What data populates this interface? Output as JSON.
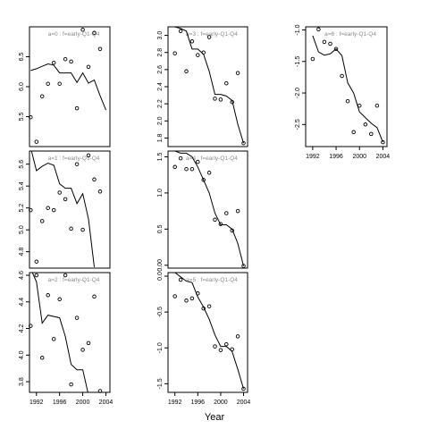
{
  "chart_data": {
    "type": "scatter",
    "xlabel": "Year",
    "x_ticks": [
      1992,
      1996,
      2000,
      2004
    ],
    "xlim": [
      1990.8,
      2004.7
    ],
    "panels": [
      {
        "label": "a=0 : f=early-Q1-Q4",
        "ylim": [
          5.0,
          7.0
        ],
        "yticks": [
          5.5,
          6.0,
          6.5
        ],
        "ytick_labels": [
          "5.5",
          "6.0",
          "6.5"
        ],
        "points": {
          "x": [
            1991,
            1992,
            1993,
            1994,
            1995,
            1996,
            1997,
            1998,
            1999,
            2000,
            2001,
            2002,
            2003,
            2004
          ],
          "y": [
            5.49,
            5.08,
            5.84,
            6.05,
            6.4,
            6.05,
            6.46,
            6.42,
            5.64,
            6.95,
            6.33,
            6.9,
            6.63,
            null
          ]
        },
        "fit": {
          "x": [
            1991,
            1992,
            1993,
            1994,
            1995,
            1996,
            1997,
            1998,
            1999,
            2000,
            2001,
            2002,
            2003,
            2004
          ],
          "y": [
            6.27,
            6.3,
            6.34,
            6.38,
            6.36,
            6.23,
            6.23,
            6.23,
            6.07,
            6.23,
            6.06,
            6.11,
            5.85,
            5.61
          ]
        }
      },
      {
        "label": "a=3 : f=early-Q1-Q4",
        "ylim": [
          1.7,
          3.1
        ],
        "yticks": [
          1.8,
          2.0,
          2.2,
          2.4,
          2.6,
          2.8,
          3.0
        ],
        "ytick_labels": [
          "1.8",
          "2.0",
          "2.2",
          "2.4",
          "2.6",
          "2.8",
          "3.0"
        ],
        "points": {
          "x": [
            1992,
            1993,
            1994,
            1995,
            1996,
            1997,
            1998,
            1999,
            2000,
            2001,
            2002,
            2003,
            2004
          ],
          "y": [
            2.79,
            3.05,
            2.58,
            2.93,
            2.77,
            2.8,
            2.98,
            2.26,
            2.25,
            2.44,
            2.22,
            2.56,
            1.74
          ]
        },
        "fit": {
          "x": [
            1992,
            1993,
            1994,
            1995,
            1996,
            1997,
            1998,
            1999,
            2000,
            2001,
            2002,
            2003,
            2004
          ],
          "y": [
            3.1,
            3.08,
            3.05,
            2.84,
            2.84,
            2.78,
            2.58,
            2.31,
            2.31,
            2.29,
            2.24,
            1.96,
            1.74
          ]
        }
      },
      {
        "label": "a=6 : f=early-Q1-Q4",
        "ylim": [
          -2.85,
          -0.95
        ],
        "yticks": [
          -2.5,
          -2.0,
          -1.5,
          -1.0
        ],
        "ytick_labels": [
          "-2.5",
          "-2.0",
          "-1.5",
          "-1.0"
        ],
        "points": {
          "x": [
            1992,
            1993,
            1994,
            1995,
            1996,
            1997,
            1998,
            1999,
            2000,
            2001,
            2002,
            2003,
            2004
          ],
          "y": [
            -1.46,
            -0.99,
            -1.19,
            -1.22,
            -1.3,
            -1.73,
            -2.13,
            -2.62,
            -2.2,
            -2.5,
            -2.65,
            -2.2,
            -2.78
          ]
        },
        "fit": {
          "x": [
            1992,
            1993,
            1994,
            1995,
            1996,
            1997,
            1998,
            1999,
            2000,
            2001,
            2002,
            2003,
            2004
          ],
          "y": [
            -1.09,
            -1.35,
            -1.4,
            -1.38,
            -1.3,
            -1.41,
            -1.84,
            -2.0,
            -2.3,
            -2.39,
            -2.48,
            -2.55,
            -2.78
          ]
        }
      },
      {
        "label": "a=1 : f=early-Q1-Q4",
        "ylim": [
          4.65,
          5.72
        ],
        "yticks": [
          4.8,
          5.0,
          5.2,
          5.4,
          5.6
        ],
        "ytick_labels": [
          "4.8",
          "5.0",
          "5.2",
          "5.4",
          "5.6"
        ],
        "points": {
          "x": [
            1991,
            1992,
            1993,
            1994,
            1995,
            1996,
            1997,
            1998,
            1999,
            2000,
            2001,
            2002,
            2003,
            2004
          ],
          "y": [
            5.18,
            4.71,
            5.08,
            5.2,
            5.18,
            5.34,
            5.28,
            5.01,
            5.6,
            5.0,
            5.68,
            5.46,
            5.35,
            null
          ]
        },
        "fit": {
          "x": [
            1991,
            1992,
            1993,
            1994,
            1995,
            1996,
            1997,
            1998,
            1999,
            2000,
            2001,
            2002,
            2003,
            2004
          ],
          "y": [
            5.75,
            5.54,
            5.58,
            5.61,
            5.59,
            5.42,
            5.38,
            5.38,
            5.24,
            5.33,
            5.1,
            4.66,
            null,
            null
          ]
        }
      },
      {
        "label": "a=4 : f=early-Q1-Q4",
        "ylim": [
          -0.04,
          1.58
        ],
        "yticks": [
          0.0,
          0.5,
          1.0,
          1.5
        ],
        "ytick_labels": [
          "0.00",
          "0.5",
          "1.0",
          "1.5"
        ],
        "points": {
          "x": [
            1992,
            1993,
            1994,
            1995,
            1996,
            1997,
            1998,
            1999,
            2000,
            2001,
            2002,
            2003,
            2004
          ],
          "y": [
            1.36,
            1.48,
            1.33,
            1.33,
            1.43,
            1.18,
            1.28,
            0.63,
            0.57,
            0.72,
            0.48,
            0.75,
            -0.01
          ]
        },
        "fit": {
          "x": [
            1992,
            1993,
            1994,
            1995,
            1996,
            1997,
            1998,
            1999,
            2000,
            2001,
            2002,
            2003,
            2004
          ],
          "y": [
            1.58,
            1.55,
            1.55,
            1.5,
            1.36,
            1.18,
            1.0,
            0.72,
            0.56,
            0.56,
            0.5,
            0.3,
            -0.01
          ]
        }
      },
      {
        "label": "a=2 : f=early-Q1-Q4",
        "ylim": [
          3.72,
          4.62
        ],
        "yticks": [
          3.8,
          4.0,
          4.2,
          4.4,
          4.6
        ],
        "ytick_labels": [
          "3.8",
          "4.0",
          "4.2",
          "4.4",
          "4.6"
        ],
        "points": {
          "x": [
            1991,
            1992,
            1993,
            1994,
            1995,
            1996,
            1997,
            1998,
            1999,
            2000,
            2001,
            2002,
            2003,
            2004
          ],
          "y": [
            4.22,
            4.6,
            3.98,
            4.45,
            4.12,
            4.42,
            4.6,
            3.78,
            4.28,
            4.04,
            4.09,
            4.44,
            3.73,
            null
          ]
        },
        "fit": {
          "x": [
            1991,
            1992,
            1993,
            1994,
            1995,
            1996,
            1997,
            1998,
            1999,
            2000,
            2001,
            2002,
            2003,
            2004
          ],
          "y": [
            4.65,
            4.55,
            4.24,
            4.3,
            4.29,
            4.28,
            4.14,
            3.93,
            3.89,
            3.89,
            3.7,
            null,
            null,
            null
          ]
        }
      },
      {
        "label": "a=5 : f=early-Q1-Q4",
        "ylim": [
          -1.62,
          0.05
        ],
        "yticks": [
          -1.5,
          -1.0,
          -0.5,
          0.0
        ],
        "ytick_labels": [
          "-1.5",
          "-1.0",
          "-0.5",
          "0.0"
        ],
        "points": {
          "x": [
            1992,
            1993,
            1994,
            1995,
            1996,
            1997,
            1998,
            1999,
            2000,
            2001,
            2002,
            2003,
            2004
          ],
          "y": [
            -0.28,
            -0.05,
            -0.34,
            -0.31,
            -0.24,
            -0.45,
            -0.42,
            -0.98,
            -1.03,
            -0.95,
            -1.02,
            -0.84,
            -1.57
          ]
        },
        "fit": {
          "x": [
            1992,
            1993,
            1994,
            1995,
            1996,
            1997,
            1998,
            1999,
            2000,
            2001,
            2002,
            2003,
            2004
          ],
          "y": [
            0.05,
            -0.01,
            -0.07,
            -0.09,
            -0.29,
            -0.43,
            -0.6,
            -0.82,
            -0.98,
            -0.98,
            -1.05,
            -1.3,
            -1.57
          ]
        }
      }
    ]
  }
}
